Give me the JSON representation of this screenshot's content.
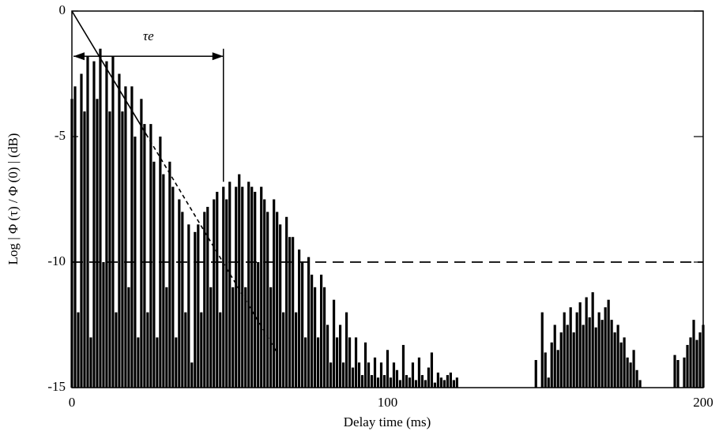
{
  "chart_data": {
    "type": "bar",
    "xlabel": "Delay time (ms)",
    "ylabel": "Log | Φ (τ) / Φ (0) | (dB)",
    "xlim": [
      0,
      200
    ],
    "ylim": [
      -15,
      0
    ],
    "xticks": [
      0,
      100,
      200
    ],
    "yticks": [
      0,
      -5,
      -10,
      -15
    ],
    "x": [
      0,
      1,
      2,
      3,
      4,
      5,
      6,
      7,
      8,
      9,
      10,
      11,
      12,
      13,
      14,
      15,
      16,
      17,
      18,
      19,
      20,
      21,
      22,
      23,
      24,
      25,
      26,
      27,
      28,
      29,
      30,
      31,
      32,
      33,
      34,
      35,
      36,
      37,
      38,
      39,
      40,
      41,
      42,
      43,
      44,
      45,
      46,
      47,
      48,
      49,
      50,
      51,
      52,
      53,
      54,
      55,
      56,
      57,
      58,
      59,
      60,
      61,
      62,
      63,
      64,
      65,
      66,
      67,
      68,
      69,
      70,
      71,
      72,
      73,
      74,
      75,
      76,
      77,
      78,
      79,
      80,
      81,
      82,
      83,
      84,
      85,
      86,
      87,
      88,
      89,
      90,
      91,
      92,
      93,
      94,
      95,
      96,
      97,
      98,
      99,
      100,
      101,
      102,
      103,
      104,
      105,
      106,
      107,
      108,
      109,
      110,
      111,
      112,
      113,
      114,
      115,
      116,
      117,
      118,
      119,
      120,
      121,
      122,
      123,
      124,
      125,
      126,
      127,
      128,
      129,
      130,
      131,
      132,
      133,
      134,
      135,
      136,
      137,
      138,
      139,
      140,
      141,
      142,
      143,
      144,
      145,
      146,
      147,
      148,
      149,
      150,
      151,
      152,
      153,
      154,
      155,
      156,
      157,
      158,
      159,
      160,
      161,
      162,
      163,
      164,
      165,
      166,
      167,
      168,
      169,
      170,
      171,
      172,
      173,
      174,
      175,
      176,
      177,
      178,
      179,
      180,
      181,
      182,
      183,
      184,
      185,
      186,
      187,
      188,
      189,
      190,
      191,
      192,
      193,
      194,
      195,
      196,
      197,
      198,
      199,
      200
    ],
    "series": [
      {
        "color": "#000000",
        "values": [
          -3.5,
          -3,
          -12,
          -2.5,
          -4,
          -1.8,
          -13,
          -2,
          -3.5,
          -1.5,
          -10,
          -2,
          -4,
          -1.8,
          -12,
          -2.5,
          -4,
          -3,
          -11,
          -3,
          -5,
          -13,
          -3.5,
          -4.5,
          -12,
          -4.5,
          -6,
          -13,
          -5,
          -6.5,
          -11,
          -6,
          -7,
          -13,
          -7.5,
          -8,
          -12,
          -8.5,
          -14,
          -8.8,
          -8.5,
          -12,
          -8,
          -7.8,
          -11,
          -7.5,
          -7.2,
          -12,
          -7,
          -7.5,
          -6.8,
          -11,
          -7,
          -6.5,
          -7,
          -11,
          -6.8,
          -7,
          -7.2,
          -10,
          -7,
          -7.5,
          -8,
          -11,
          -7.5,
          -8,
          -8.5,
          -12,
          -8.2,
          -9,
          -9,
          -12,
          -9.5,
          -10,
          -13,
          -9.8,
          -10.5,
          -11,
          -13,
          -10.5,
          -11,
          -12.5,
          -14,
          -11.5,
          -13,
          -12.5,
          -14,
          -12,
          -13,
          -14.2,
          -13,
          -14,
          -14.5,
          -13.2,
          -14,
          -14.5,
          -13.8,
          -14.6,
          -14,
          -14.5,
          -13.5,
          -14.6,
          -14,
          -14.3,
          -14.7,
          -13.3,
          -14.5,
          -14.6,
          -14,
          -14.7,
          -13.8,
          -14.5,
          -14.7,
          -14.2,
          -13.6,
          -14.8,
          -14.4,
          -14.6,
          -14.7,
          -14.5,
          -14.4,
          -14.7,
          -14.6,
          null,
          null,
          null,
          null,
          null,
          null,
          null,
          null,
          null,
          null,
          null,
          null,
          null,
          null,
          null,
          null,
          null,
          null,
          null,
          null,
          null,
          null,
          null,
          null,
          -13.9,
          null,
          -12,
          -13.6,
          -14.6,
          -13.2,
          -12.5,
          -13.5,
          -12.8,
          -12,
          -12.5,
          -11.8,
          -12.8,
          -12,
          -11.6,
          -12.5,
          -11.4,
          -12.2,
          -11.2,
          -12.6,
          -12,
          -12.3,
          -11.8,
          -11.5,
          -12.3,
          -12.8,
          -12.5,
          -13.2,
          -13,
          -13.8,
          -14,
          -13.5,
          -14.3,
          -14.7,
          null,
          null,
          null,
          null,
          null,
          null,
          null,
          null,
          null,
          null,
          -13.7,
          -13.9,
          null,
          -13.8,
          -13.3,
          -13,
          -12.3,
          -13.1,
          -12.8,
          -12.5
        ]
      }
    ],
    "lines": [
      {
        "x": [
          0,
          23.5
        ],
        "y": [
          0,
          -4.9
        ],
        "style": "solid"
      },
      {
        "x": [
          23.5,
          65
        ],
        "y": [
          -4.9,
          -13.6
        ],
        "style": "dashed"
      }
    ],
    "hline": -10,
    "annotation": {
      "text": "τe",
      "x": [
        0,
        48
      ],
      "y": -1.8,
      "marker_y": [
        -1.5,
        -6.8
      ]
    }
  }
}
